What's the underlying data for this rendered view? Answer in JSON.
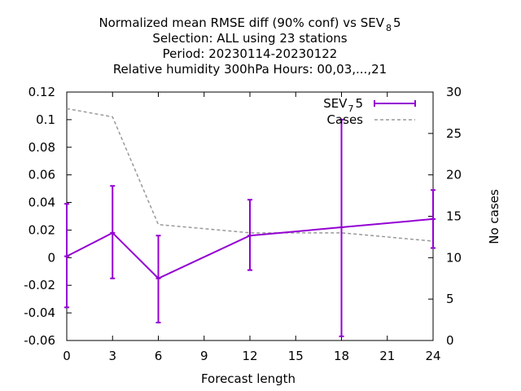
{
  "chart_data": {
    "type": "line",
    "title_lines": [
      "Normalized mean RMSE diff (90% conf) vs SEV",
      "Selection: ALL using    23 stations",
      "Period: 20230114-20230122",
      "Relative humidity 300hPa   Hours:  00,03,...,21"
    ],
    "title_sub_main": "8",
    "title_tail_main": "5",
    "xlabel": "Forecast length",
    "ylabel_right": "No cases",
    "xlim": [
      0,
      24
    ],
    "ylim_left": [
      -0.06,
      0.12
    ],
    "ylim_right": [
      0,
      30
    ],
    "x_ticks": [
      0,
      3,
      6,
      9,
      12,
      15,
      18,
      21,
      24
    ],
    "y_ticks_left": [
      -0.06,
      -0.04,
      -0.02,
      0,
      0.02,
      0.04,
      0.06,
      0.08,
      0.1,
      0.12
    ],
    "y_ticks_left_labels": [
      "-0.06",
      "-0.04",
      "-0.02",
      "0",
      "0.02",
      "0.04",
      "0.06",
      "0.08",
      "0.1",
      "0.12"
    ],
    "y_ticks_right": [
      0,
      5,
      10,
      15,
      20,
      25,
      30
    ],
    "y_ticks_right_labels": [
      "0",
      "5",
      "10",
      "15",
      "20",
      "25",
      "30"
    ],
    "series": [
      {
        "name": "SEV",
        "name_sub": "7",
        "name_tail": "5",
        "color": "#9400d3",
        "axis": "left",
        "x": [
          0,
          3,
          6,
          12,
          18,
          24
        ],
        "y": [
          0.001,
          0.018,
          -0.015,
          0.016,
          0.022,
          0.028
        ],
        "err_low": [
          -0.036,
          -0.015,
          -0.047,
          -0.009,
          -0.057,
          0.007
        ],
        "err_high": [
          0.039,
          0.052,
          0.016,
          0.042,
          0.1,
          0.049
        ]
      },
      {
        "name": "Cases",
        "color": "#999999",
        "axis": "right",
        "x": [
          0,
          3,
          6,
          12,
          18,
          24
        ],
        "y": [
          28,
          27,
          14,
          13,
          13,
          12
        ]
      }
    ],
    "legend_position": "top-right",
    "grid": false
  }
}
